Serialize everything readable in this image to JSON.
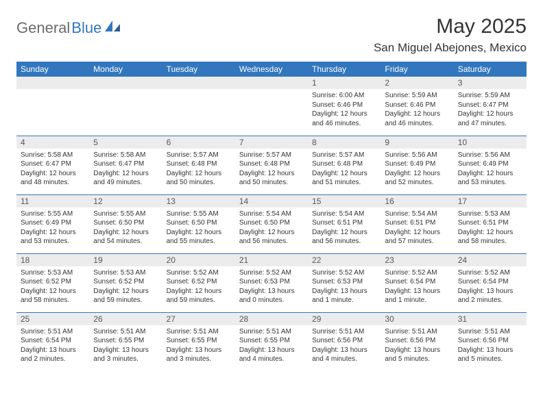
{
  "logo": {
    "general": "General",
    "blue": "Blue"
  },
  "header": {
    "month_title": "May 2025",
    "location": "San Miguel Abejones, Mexico"
  },
  "colors": {
    "accent": "#3277bd",
    "daynum_bg": "#ececec",
    "text": "#333333",
    "logo_gray": "#6b6b6b"
  },
  "day_labels": [
    "Sunday",
    "Monday",
    "Tuesday",
    "Wednesday",
    "Thursday",
    "Friday",
    "Saturday"
  ],
  "weeks": [
    [
      null,
      null,
      null,
      null,
      {
        "n": "1",
        "sr": "Sunrise: 6:00 AM",
        "ss": "Sunset: 6:46 PM",
        "dl": "Daylight: 12 hours and 46 minutes."
      },
      {
        "n": "2",
        "sr": "Sunrise: 5:59 AM",
        "ss": "Sunset: 6:46 PM",
        "dl": "Daylight: 12 hours and 46 minutes."
      },
      {
        "n": "3",
        "sr": "Sunrise: 5:59 AM",
        "ss": "Sunset: 6:47 PM",
        "dl": "Daylight: 12 hours and 47 minutes."
      }
    ],
    [
      {
        "n": "4",
        "sr": "Sunrise: 5:58 AM",
        "ss": "Sunset: 6:47 PM",
        "dl": "Daylight: 12 hours and 48 minutes."
      },
      {
        "n": "5",
        "sr": "Sunrise: 5:58 AM",
        "ss": "Sunset: 6:47 PM",
        "dl": "Daylight: 12 hours and 49 minutes."
      },
      {
        "n": "6",
        "sr": "Sunrise: 5:57 AM",
        "ss": "Sunset: 6:48 PM",
        "dl": "Daylight: 12 hours and 50 minutes."
      },
      {
        "n": "7",
        "sr": "Sunrise: 5:57 AM",
        "ss": "Sunset: 6:48 PM",
        "dl": "Daylight: 12 hours and 50 minutes."
      },
      {
        "n": "8",
        "sr": "Sunrise: 5:57 AM",
        "ss": "Sunset: 6:48 PM",
        "dl": "Daylight: 12 hours and 51 minutes."
      },
      {
        "n": "9",
        "sr": "Sunrise: 5:56 AM",
        "ss": "Sunset: 6:49 PM",
        "dl": "Daylight: 12 hours and 52 minutes."
      },
      {
        "n": "10",
        "sr": "Sunrise: 5:56 AM",
        "ss": "Sunset: 6:49 PM",
        "dl": "Daylight: 12 hours and 53 minutes."
      }
    ],
    [
      {
        "n": "11",
        "sr": "Sunrise: 5:55 AM",
        "ss": "Sunset: 6:49 PM",
        "dl": "Daylight: 12 hours and 53 minutes."
      },
      {
        "n": "12",
        "sr": "Sunrise: 5:55 AM",
        "ss": "Sunset: 6:50 PM",
        "dl": "Daylight: 12 hours and 54 minutes."
      },
      {
        "n": "13",
        "sr": "Sunrise: 5:55 AM",
        "ss": "Sunset: 6:50 PM",
        "dl": "Daylight: 12 hours and 55 minutes."
      },
      {
        "n": "14",
        "sr": "Sunrise: 5:54 AM",
        "ss": "Sunset: 6:50 PM",
        "dl": "Daylight: 12 hours and 56 minutes."
      },
      {
        "n": "15",
        "sr": "Sunrise: 5:54 AM",
        "ss": "Sunset: 6:51 PM",
        "dl": "Daylight: 12 hours and 56 minutes."
      },
      {
        "n": "16",
        "sr": "Sunrise: 5:54 AM",
        "ss": "Sunset: 6:51 PM",
        "dl": "Daylight: 12 hours and 57 minutes."
      },
      {
        "n": "17",
        "sr": "Sunrise: 5:53 AM",
        "ss": "Sunset: 6:51 PM",
        "dl": "Daylight: 12 hours and 58 minutes."
      }
    ],
    [
      {
        "n": "18",
        "sr": "Sunrise: 5:53 AM",
        "ss": "Sunset: 6:52 PM",
        "dl": "Daylight: 12 hours and 58 minutes."
      },
      {
        "n": "19",
        "sr": "Sunrise: 5:53 AM",
        "ss": "Sunset: 6:52 PM",
        "dl": "Daylight: 12 hours and 59 minutes."
      },
      {
        "n": "20",
        "sr": "Sunrise: 5:52 AM",
        "ss": "Sunset: 6:52 PM",
        "dl": "Daylight: 12 hours and 59 minutes."
      },
      {
        "n": "21",
        "sr": "Sunrise: 5:52 AM",
        "ss": "Sunset: 6:53 PM",
        "dl": "Daylight: 13 hours and 0 minutes."
      },
      {
        "n": "22",
        "sr": "Sunrise: 5:52 AM",
        "ss": "Sunset: 6:53 PM",
        "dl": "Daylight: 13 hours and 1 minute."
      },
      {
        "n": "23",
        "sr": "Sunrise: 5:52 AM",
        "ss": "Sunset: 6:54 PM",
        "dl": "Daylight: 13 hours and 1 minute."
      },
      {
        "n": "24",
        "sr": "Sunrise: 5:52 AM",
        "ss": "Sunset: 6:54 PM",
        "dl": "Daylight: 13 hours and 2 minutes."
      }
    ],
    [
      {
        "n": "25",
        "sr": "Sunrise: 5:51 AM",
        "ss": "Sunset: 6:54 PM",
        "dl": "Daylight: 13 hours and 2 minutes."
      },
      {
        "n": "26",
        "sr": "Sunrise: 5:51 AM",
        "ss": "Sunset: 6:55 PM",
        "dl": "Daylight: 13 hours and 3 minutes."
      },
      {
        "n": "27",
        "sr": "Sunrise: 5:51 AM",
        "ss": "Sunset: 6:55 PM",
        "dl": "Daylight: 13 hours and 3 minutes."
      },
      {
        "n": "28",
        "sr": "Sunrise: 5:51 AM",
        "ss": "Sunset: 6:55 PM",
        "dl": "Daylight: 13 hours and 4 minutes."
      },
      {
        "n": "29",
        "sr": "Sunrise: 5:51 AM",
        "ss": "Sunset: 6:56 PM",
        "dl": "Daylight: 13 hours and 4 minutes."
      },
      {
        "n": "30",
        "sr": "Sunrise: 5:51 AM",
        "ss": "Sunset: 6:56 PM",
        "dl": "Daylight: 13 hours and 5 minutes."
      },
      {
        "n": "31",
        "sr": "Sunrise: 5:51 AM",
        "ss": "Sunset: 6:56 PM",
        "dl": "Daylight: 13 hours and 5 minutes."
      }
    ]
  ]
}
